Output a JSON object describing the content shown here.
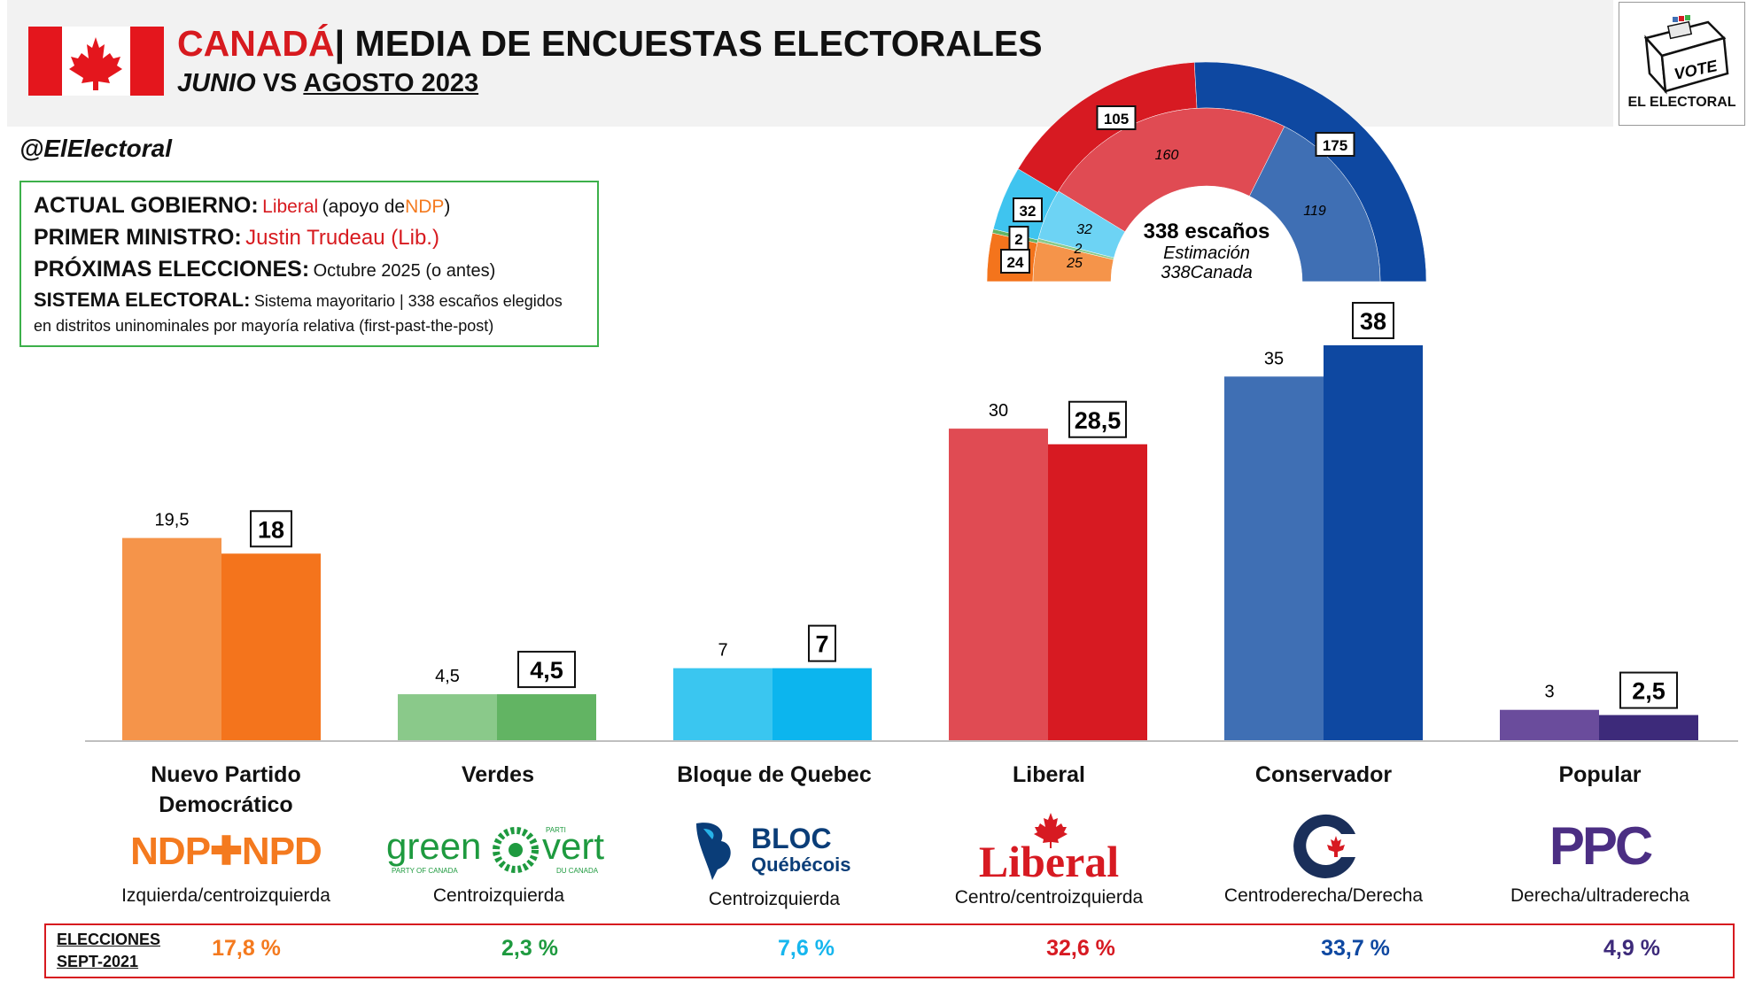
{
  "header": {
    "country": "CANADÁ",
    "separator": "|",
    "title": "MEDIA DE ENCUESTAS ELECTORALES",
    "subtitle_a": "JUNIO",
    "subtitle_b": "VS",
    "subtitle_c": "AGOSTO 2023",
    "handle": "@ElElectoral"
  },
  "logo": {
    "box_text": "VOTE",
    "name": "EL ELECTORAL"
  },
  "info": {
    "gov_label": "ACTUAL GOBIERNO:",
    "gov_party": "Liberal",
    "gov_support_a": "(apoyo de",
    "gov_support_party": "NDP",
    "gov_support_b": ")",
    "pm_label": "PRIMER MINISTRO:",
    "pm_value": "Justin Trudeau (Lib.)",
    "next_label": "PRÓXIMAS ELECCIONES:",
    "next_value": "Octubre 2025 (o antes)",
    "system_label": "SISTEMA ELECTORAL:",
    "system_value_a": "Sistema mayoritario | 338 escaños elegidos",
    "system_value_b": "en distritos uninominales por mayoría relativa (first-past-the-post)"
  },
  "seats": {
    "title": "338 escaños",
    "subtitle": "Estimación",
    "source": "338Canada",
    "outer": [
      {
        "party": "NDP",
        "value": 24,
        "label": "24"
      },
      {
        "party": "Verdes",
        "value": 2,
        "label": "2"
      },
      {
        "party": "Bloque",
        "value": 32,
        "label": "32"
      },
      {
        "party": "Liberal",
        "value": 105,
        "label": "105"
      },
      {
        "party": "Conservador",
        "value": 175,
        "label": "175"
      }
    ],
    "inner": [
      {
        "party": "NDP",
        "value": 25,
        "label": "25"
      },
      {
        "party": "Verdes",
        "value": 2,
        "label": "2"
      },
      {
        "party": "Bloque",
        "value": 32,
        "label": "32"
      },
      {
        "party": "Liberal",
        "value": 160,
        "label": "160"
      },
      {
        "party": "Conservador",
        "value": 119,
        "label": "119"
      }
    ]
  },
  "chart_data": {
    "type": "bar",
    "categories": [
      "Nuevo Partido Democrático",
      "Verdes",
      "Bloque de Quebec",
      "Liberal",
      "Conservador",
      "Popular"
    ],
    "series": [
      {
        "values": [
          19.5,
          4.5,
          7,
          30,
          35,
          3
        ],
        "labels": [
          "19,5",
          "4,5",
          "7",
          "30",
          "35",
          "3"
        ]
      },
      {
        "values": [
          18,
          4.5,
          7,
          28.5,
          38,
          2.5
        ],
        "labels": [
          "18",
          "4,5",
          "7",
          "28,5",
          "38",
          "2,5"
        ]
      }
    ],
    "ylim": [
      0,
      38
    ],
    "colors_a": [
      "#f5944a",
      "#8ac98a",
      "#3ac6f0",
      "#e04b53",
      "#3f6fb4",
      "#6a4c9c"
    ],
    "colors_b": [
      "#f4741c",
      "#62b463",
      "#0cb5ee",
      "#d71a22",
      "#0e48a1",
      "#3d2a7a"
    ]
  },
  "parties": [
    {
      "name_a": "Nuevo Partido",
      "name_b": "Democrático",
      "ideology": "Izquierda/centroizquierda",
      "logo": "NDP✚NPD",
      "result": "17,8 %",
      "color": "#f47a1f"
    },
    {
      "name_a": "Verdes",
      "name_b": "",
      "ideology": "Centroizquierda",
      "logo_a": "green",
      "logo_b": "vert",
      "logo_sub_a": "PARTY OF CANADA",
      "logo_sub_b": "DU CANADA",
      "logo_sub_c": "PARTI",
      "result": "2,3 %",
      "color": "#1e9a3f"
    },
    {
      "name_a": "Bloque de Quebec",
      "name_b": "",
      "ideology": "Centroizquierda",
      "logo_a": "BLOC",
      "logo_b": "Québécois",
      "result": "7,6 %",
      "color": "#16b6ee"
    },
    {
      "name_a": "Liberal",
      "name_b": "",
      "ideology": "Centro/centroizquierda",
      "logo": "Liberal",
      "result": "32,6 %",
      "color": "#d71a22"
    },
    {
      "name_a": "Conservador",
      "name_b": "",
      "ideology": "Centroderecha/Derecha",
      "result": "33,7 %",
      "color": "#0e48a1"
    },
    {
      "name_a": "Popular",
      "name_b": "",
      "ideology": "Derecha/ultraderecha",
      "logo": "PPC",
      "result": "4,9 %",
      "color": "#3d2a7a"
    }
  ],
  "results": {
    "label_a": "ELECCIONES",
    "label_b": "SEPT-2021"
  }
}
